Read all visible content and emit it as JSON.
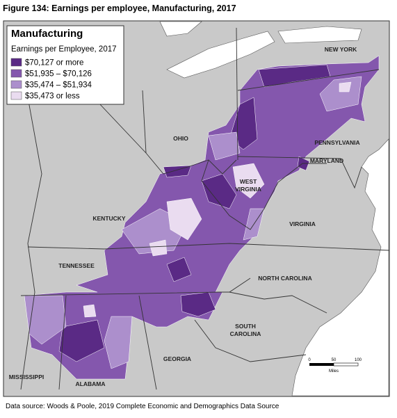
{
  "figure_title": "Figure 134: Earnings per employee, Manufacturing, 2017",
  "legend": {
    "title": "Manufacturing",
    "subtitle": "Earnings per Employee, 2017",
    "items": [
      {
        "label": "$70,127 or more",
        "color": "#5a2a85"
      },
      {
        "label": "$51,935 – $70,126",
        "color": "#8457ad"
      },
      {
        "label": "$35,474 – $51,934",
        "color": "#ac8fcc"
      },
      {
        "label": "$35,473 or less",
        "color": "#eadcf0"
      }
    ]
  },
  "state_labels": [
    {
      "lines": [
        "NEW YORK"
      ]
    },
    {
      "lines": [
        "OHIO"
      ]
    },
    {
      "lines": [
        "PENNSYLVANIA"
      ]
    },
    {
      "lines": [
        "MARYLAND"
      ]
    },
    {
      "lines": [
        "WEST",
        "VIRGINIA"
      ]
    },
    {
      "lines": [
        "KENTUCKY"
      ]
    },
    {
      "lines": [
        "VIRGINIA"
      ]
    },
    {
      "lines": [
        "TENNESSEE"
      ]
    },
    {
      "lines": [
        "NORTH CAROLINA"
      ]
    },
    {
      "lines": [
        "SOUTH",
        "CAROLINA"
      ]
    },
    {
      "lines": [
        "GEORGIA"
      ]
    },
    {
      "lines": [
        "MISSISSIPPI"
      ]
    },
    {
      "lines": [
        "ALABAMA"
      ]
    }
  ],
  "scale": {
    "ticks": [
      0,
      50,
      100
    ],
    "unit": "Miles"
  },
  "source": "Data source: Woods & Poole, 2019 Complete Economic and Demographics Data Source"
}
